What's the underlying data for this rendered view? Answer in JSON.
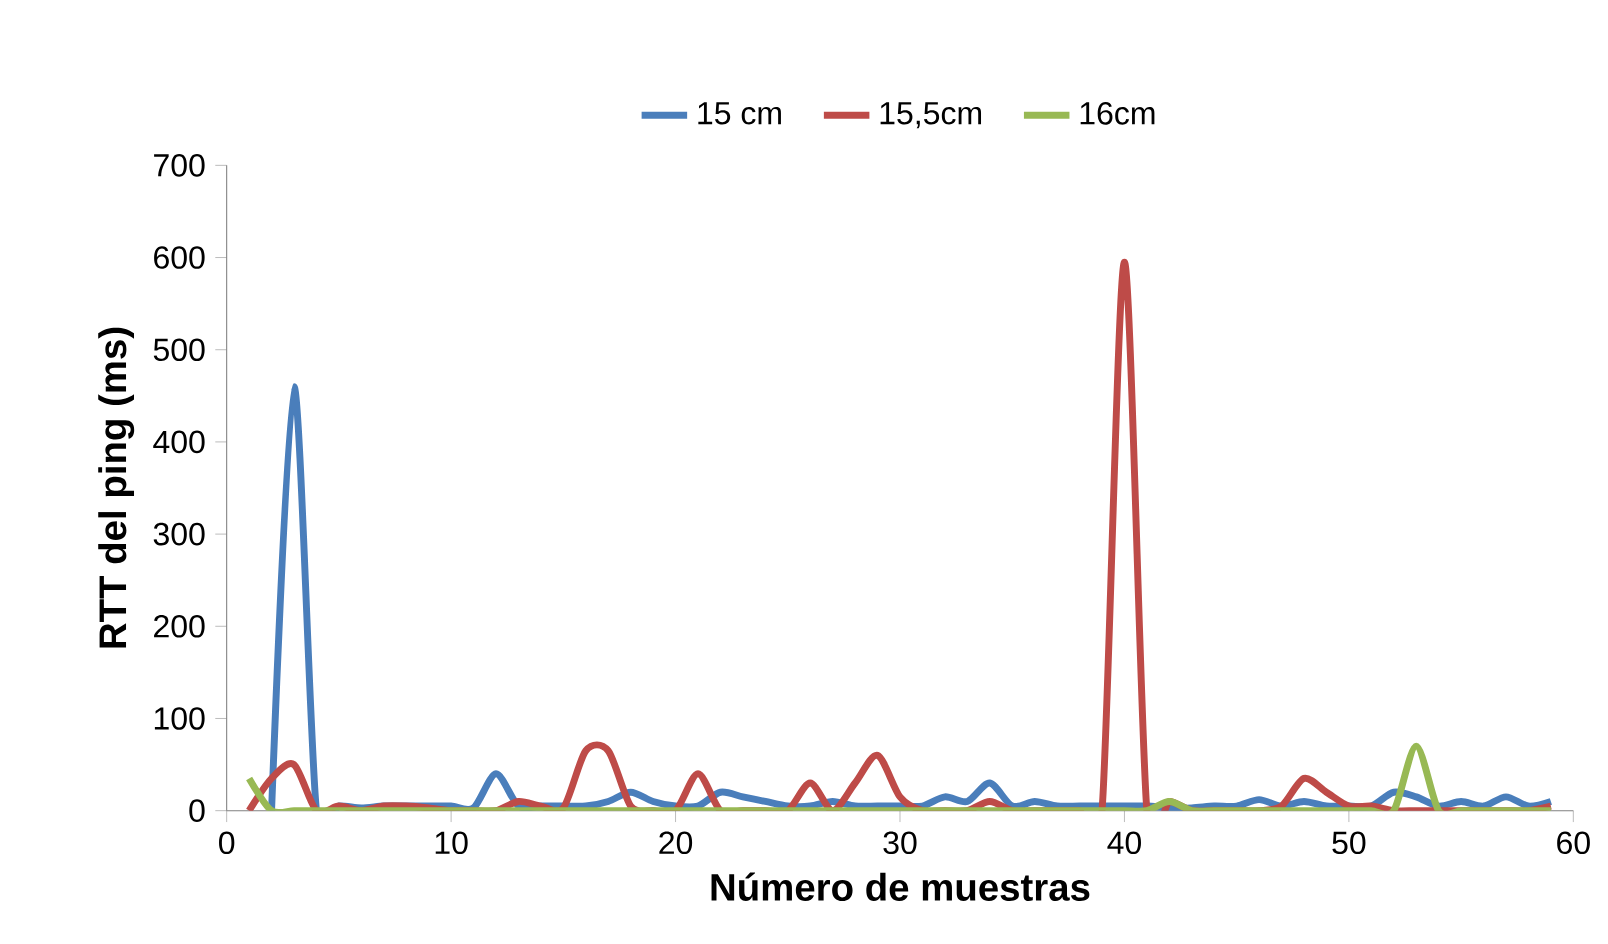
{
  "chart_data": {
    "type": "line",
    "xlabel": "Número de muestras",
    "ylabel": "RTT del ping (ms)",
    "xlim": [
      0,
      60
    ],
    "xticks": [
      0,
      10,
      20,
      30,
      40,
      50,
      60
    ],
    "ylim": [
      0,
      700
    ],
    "yticks": [
      0,
      100,
      200,
      300,
      400,
      500,
      600,
      700
    ],
    "legend": "top",
    "grid": false,
    "marker": "none",
    "line_style": "solid",
    "series": [
      {
        "name": "15 cm",
        "color": "#4a7ebb",
        "x": [
          2,
          3,
          4,
          5,
          6,
          7,
          8,
          9,
          10,
          11,
          12,
          13,
          14,
          15,
          16,
          17,
          18,
          19,
          20,
          21,
          22,
          23,
          24,
          25,
          26,
          27,
          28,
          29,
          30,
          31,
          32,
          33,
          34,
          35,
          36,
          37,
          38,
          39,
          40,
          41,
          42,
          43,
          44,
          45,
          46,
          47,
          48,
          49,
          50,
          51,
          52,
          53,
          54,
          55,
          56,
          57,
          58,
          59
        ],
        "values": [
          0,
          460,
          0,
          5,
          3,
          5,
          5,
          5,
          5,
          3,
          40,
          5,
          5,
          5,
          5,
          10,
          20,
          10,
          5,
          5,
          20,
          15,
          10,
          5,
          5,
          10,
          5,
          5,
          5,
          5,
          15,
          10,
          30,
          5,
          10,
          5,
          5,
          5,
          5,
          5,
          3,
          3,
          5,
          5,
          12,
          5,
          10,
          5,
          5,
          5,
          20,
          15,
          5,
          10,
          5,
          15,
          5,
          10
        ]
      },
      {
        "name": "15,5cm",
        "color": "#be4b48",
        "x": [
          1,
          2,
          3,
          4,
          5,
          6,
          7,
          8,
          9,
          10,
          11,
          12,
          13,
          14,
          15,
          16,
          17,
          18,
          19,
          20,
          21,
          22,
          23,
          24,
          25,
          26,
          27,
          28,
          29,
          30,
          31,
          32,
          33,
          34,
          35,
          36,
          37,
          38,
          39,
          40,
          41,
          42,
          43,
          44,
          45,
          46,
          47,
          48,
          49,
          50,
          51,
          52,
          53,
          54,
          55,
          56,
          57,
          58,
          59
        ],
        "values": [
          0,
          35,
          50,
          0,
          5,
          0,
          5,
          5,
          3,
          0,
          0,
          0,
          10,
          5,
          3,
          65,
          65,
          5,
          0,
          0,
          40,
          0,
          0,
          0,
          0,
          30,
          0,
          30,
          60,
          15,
          0,
          0,
          0,
          10,
          0,
          0,
          0,
          0,
          0,
          595,
          0,
          10,
          0,
          0,
          0,
          0,
          5,
          35,
          20,
          5,
          5,
          0,
          0,
          0,
          0,
          0,
          0,
          0,
          5
        ]
      },
      {
        "name": "16cm",
        "color": "#98b954",
        "x": [
          1,
          2,
          3,
          4,
          5,
          6,
          7,
          8,
          9,
          10,
          11,
          12,
          13,
          14,
          15,
          16,
          17,
          18,
          19,
          20,
          21,
          22,
          23,
          24,
          25,
          26,
          27,
          28,
          29,
          30,
          31,
          32,
          33,
          34,
          35,
          36,
          37,
          38,
          39,
          40,
          41,
          42,
          43,
          44,
          45,
          46,
          47,
          48,
          49,
          50,
          51,
          52,
          53,
          54,
          55,
          56,
          57,
          58,
          59
        ],
        "values": [
          35,
          0,
          0,
          0,
          0,
          0,
          0,
          0,
          0,
          0,
          0,
          0,
          0,
          0,
          0,
          0,
          0,
          0,
          0,
          0,
          0,
          0,
          0,
          0,
          0,
          0,
          0,
          0,
          0,
          0,
          0,
          0,
          0,
          0,
          0,
          0,
          0,
          0,
          0,
          0,
          0,
          10,
          0,
          0,
          0,
          0,
          0,
          0,
          0,
          0,
          0,
          0,
          70,
          0,
          0,
          0,
          0,
          0,
          0
        ]
      }
    ]
  }
}
